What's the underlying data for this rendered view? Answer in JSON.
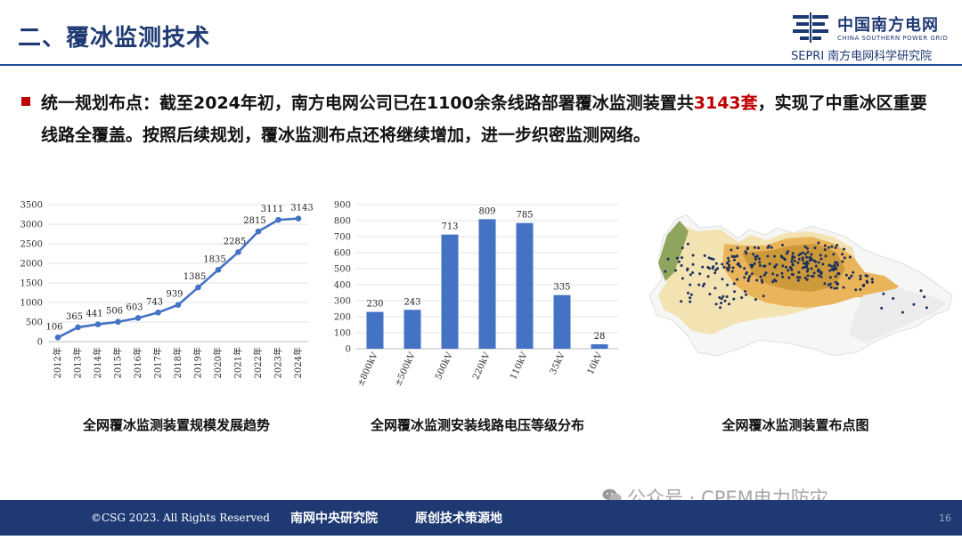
{
  "header": {
    "title": "二、覆冰监测技术",
    "logo_name": "中国南方电网",
    "logo_en": "CHINA SOUTHERN POWER GRID",
    "logo_sepri": "SEPRI",
    "logo_institute": "南方电网科学研究院"
  },
  "statement": {
    "before": "统一规划布点：截至2024年初，南方电网公司已在1100余条线路部署覆冰监测装置共",
    "highlight": "3143套",
    "after": "，实现了中重冰区重要线路全覆盖。按照后续规划，覆冰监测布点还将继续增加，进一步织密监测网络。"
  },
  "captions": {
    "line": "全网覆冰监测装置规模发展趋势",
    "bar": "全网覆冰监测安装线路电压等级分布",
    "map": "全网覆冰监测装置布点图"
  },
  "footer": {
    "copyright": "©CSG 2023. All Rights Reserved",
    "slogan_left": "南网中央研究院",
    "slogan_right": "原创技术策源地",
    "page": "16"
  },
  "watermark": "公众号 · CPEM电力防灾",
  "colors": {
    "accent": "#1f3a73",
    "highlight": "#c00000",
    "series": "#4472c4"
  },
  "chart_data": [
    {
      "type": "line",
      "x": [
        "2012年",
        "2013年",
        "2014年",
        "2015年",
        "2016年",
        "2017年",
        "2018年",
        "2019年",
        "2020年",
        "2021年",
        "2022年",
        "2023年",
        "2024年"
      ],
      "series": [
        {
          "values": [
            106,
            365,
            441,
            506,
            603,
            743,
            939,
            1385,
            1835,
            2285,
            2815,
            3111,
            3143
          ]
        }
      ],
      "ylim": [
        0,
        3500
      ],
      "yticks": [
        0,
        500,
        1000,
        1500,
        2000,
        2500,
        3000,
        3500
      ],
      "grid": true
    },
    {
      "type": "bar",
      "categories": [
        "±800kV",
        "±500kV",
        "500kV",
        "220kV",
        "110kV",
        "35kV",
        "10kV"
      ],
      "values": [
        230,
        243,
        713,
        809,
        785,
        335,
        28
      ],
      "ylim": [
        0,
        900
      ],
      "yticks": [
        0,
        100,
        200,
        300,
        400,
        500,
        600,
        700,
        800,
        900
      ],
      "grid": true
    }
  ],
  "map_legend": {
    "land": "#f6f6f4",
    "low_risk": "#f3e3b3",
    "mid_risk": "#eab45a",
    "high_risk": "#c79436",
    "alpine": "#8fa45c",
    "device": "#1b2f5e"
  }
}
